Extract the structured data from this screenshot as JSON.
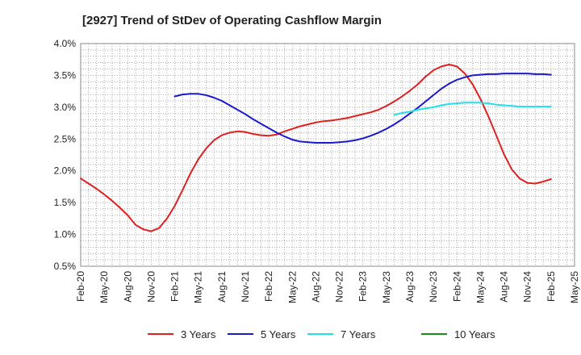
{
  "chart_data": {
    "type": "line",
    "title": "[2927]  Trend of StDev of Operating Cashflow Margin",
    "xlabel": "",
    "ylabel": "",
    "x_ticks": [
      "Feb-20",
      "May-20",
      "Aug-20",
      "Nov-20",
      "Feb-21",
      "May-21",
      "Aug-21",
      "Nov-21",
      "Feb-22",
      "May-22",
      "Aug-22",
      "Nov-22",
      "Feb-23",
      "May-23",
      "Aug-23",
      "Nov-23",
      "Feb-24",
      "May-24",
      "Aug-24",
      "Nov-24",
      "Feb-25",
      "May-25"
    ],
    "y_ticks": [
      "0.5%",
      "1.0%",
      "1.5%",
      "2.0%",
      "2.5%",
      "3.0%",
      "3.5%",
      "4.0%"
    ],
    "ylim": [
      0.5,
      4.0
    ],
    "grid": true,
    "legend_position": "bottom",
    "series": [
      {
        "name": "3 Years",
        "color": "#e02020",
        "x": [
          "Feb-20",
          "Mar-20",
          "Apr-20",
          "May-20",
          "Jun-20",
          "Jul-20",
          "Aug-20",
          "Sep-20",
          "Oct-20",
          "Nov-20",
          "Dec-20",
          "Jan-21",
          "Feb-21",
          "Mar-21",
          "Apr-21",
          "May-21",
          "Jun-21",
          "Jul-21",
          "Aug-21",
          "Sep-21",
          "Oct-21",
          "Nov-21",
          "Dec-21",
          "Jan-22",
          "Feb-22",
          "Mar-22",
          "Apr-22",
          "May-22",
          "Jun-22",
          "Jul-22",
          "Aug-22",
          "Sep-22",
          "Oct-22",
          "Nov-22",
          "Dec-22",
          "Jan-23",
          "Feb-23",
          "Mar-23",
          "Apr-23",
          "May-23",
          "Jun-23",
          "Jul-23",
          "Aug-23",
          "Sep-23",
          "Oct-23",
          "Nov-23",
          "Dec-23",
          "Jan-24",
          "Feb-24",
          "Mar-24",
          "Apr-24",
          "May-24",
          "Jun-24",
          "Jul-24",
          "Aug-24",
          "Sep-24",
          "Oct-24",
          "Nov-24",
          "Dec-24",
          "Jan-25",
          "Feb-25"
        ],
        "values": [
          1.88,
          1.8,
          1.72,
          1.63,
          1.53,
          1.42,
          1.3,
          1.15,
          1.08,
          1.05,
          1.1,
          1.25,
          1.45,
          1.7,
          1.96,
          2.18,
          2.35,
          2.48,
          2.56,
          2.6,
          2.62,
          2.61,
          2.58,
          2.56,
          2.55,
          2.57,
          2.62,
          2.66,
          2.7,
          2.73,
          2.76,
          2.78,
          2.79,
          2.81,
          2.83,
          2.86,
          2.89,
          2.92,
          2.96,
          3.02,
          3.09,
          3.17,
          3.26,
          3.36,
          3.48,
          3.58,
          3.64,
          3.67,
          3.64,
          3.53,
          3.36,
          3.13,
          2.86,
          2.56,
          2.26,
          2.02,
          1.88,
          1.81,
          1.8,
          1.83,
          1.87
        ]
      },
      {
        "name": "5 Years",
        "color": "#1a1acc",
        "x": [
          "Feb-21",
          "Mar-21",
          "Apr-21",
          "May-21",
          "Jun-21",
          "Jul-21",
          "Aug-21",
          "Sep-21",
          "Oct-21",
          "Nov-21",
          "Dec-21",
          "Jan-22",
          "Feb-22",
          "Mar-22",
          "Apr-22",
          "May-22",
          "Jun-22",
          "Jul-22",
          "Aug-22",
          "Sep-22",
          "Oct-22",
          "Nov-22",
          "Dec-22",
          "Jan-23",
          "Feb-23",
          "Mar-23",
          "Apr-23",
          "May-23",
          "Jun-23",
          "Jul-23",
          "Aug-23",
          "Sep-23",
          "Oct-23",
          "Nov-23",
          "Dec-23",
          "Jan-24",
          "Feb-24",
          "Mar-24",
          "Apr-24",
          "May-24",
          "Jun-24",
          "Jul-24",
          "Aug-24",
          "Sep-24",
          "Oct-24",
          "Nov-24",
          "Dec-24",
          "Jan-25",
          "Feb-25"
        ],
        "values": [
          3.17,
          3.2,
          3.21,
          3.21,
          3.19,
          3.15,
          3.1,
          3.03,
          2.96,
          2.89,
          2.81,
          2.74,
          2.67,
          2.6,
          2.54,
          2.49,
          2.46,
          2.45,
          2.44,
          2.44,
          2.44,
          2.45,
          2.46,
          2.48,
          2.51,
          2.55,
          2.6,
          2.66,
          2.73,
          2.81,
          2.9,
          2.99,
          3.09,
          3.19,
          3.29,
          3.37,
          3.43,
          3.47,
          3.5,
          3.51,
          3.52,
          3.52,
          3.53,
          3.53,
          3.53,
          3.53,
          3.52,
          3.52,
          3.51
        ]
      },
      {
        "name": "7 Years",
        "color": "#22e0e8",
        "x": [
          "Jun-23",
          "Jul-23",
          "Aug-23",
          "Sep-23",
          "Oct-23",
          "Nov-23",
          "Dec-23",
          "Jan-24",
          "Feb-24",
          "Mar-24",
          "Apr-24",
          "May-24",
          "Jun-24",
          "Jul-24",
          "Aug-24",
          "Sep-24",
          "Oct-24",
          "Nov-24",
          "Dec-24",
          "Jan-25",
          "Feb-25"
        ],
        "values": [
          2.88,
          2.91,
          2.93,
          2.96,
          2.98,
          3.0,
          3.03,
          3.05,
          3.06,
          3.07,
          3.07,
          3.07,
          3.06,
          3.04,
          3.03,
          3.02,
          3.01,
          3.01,
          3.01,
          3.01,
          3.01
        ]
      },
      {
        "name": "10 Years",
        "color": "#1a8a1a",
        "x": [],
        "values": []
      }
    ]
  }
}
